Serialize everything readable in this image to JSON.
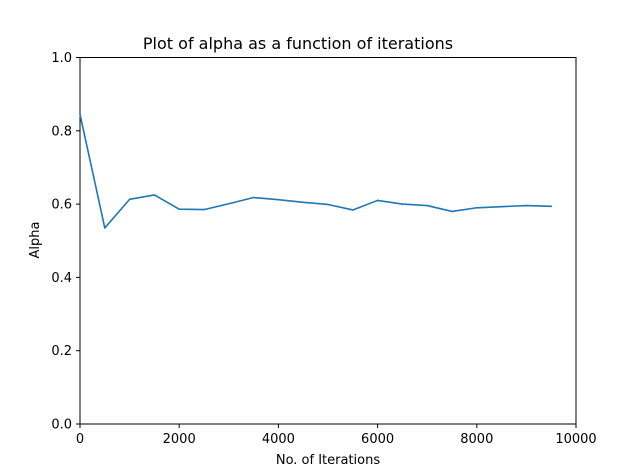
{
  "chart_data": {
    "type": "line",
    "title": "Plot of alpha as a function of iterations",
    "xlabel": "No. of Iterations",
    "ylabel": "Alpha",
    "xlim": [
      0,
      10000
    ],
    "ylim": [
      0.0,
      1.0
    ],
    "xticks": [
      "0",
      "2000",
      "4000",
      "6000",
      "8000",
      "10000"
    ],
    "yticks": [
      "0.0",
      "0.2",
      "0.4",
      "0.6",
      "0.8",
      "1.0"
    ],
    "grid": false,
    "line_color": "#1f77b4",
    "series": [
      {
        "x": [
          0,
          500,
          1000,
          1500,
          2000,
          2500,
          3000,
          3500,
          4000,
          4500,
          5000,
          5500,
          6000,
          6500,
          7000,
          7500,
          8000,
          8500,
          9000,
          9500
        ],
        "y": [
          0.845,
          0.535,
          0.613,
          0.625,
          0.586,
          0.585,
          0.601,
          0.618,
          0.612,
          0.605,
          0.599,
          0.584,
          0.61,
          0.6,
          0.596,
          0.58,
          0.59,
          0.593,
          0.596,
          0.594
        ]
      }
    ]
  }
}
